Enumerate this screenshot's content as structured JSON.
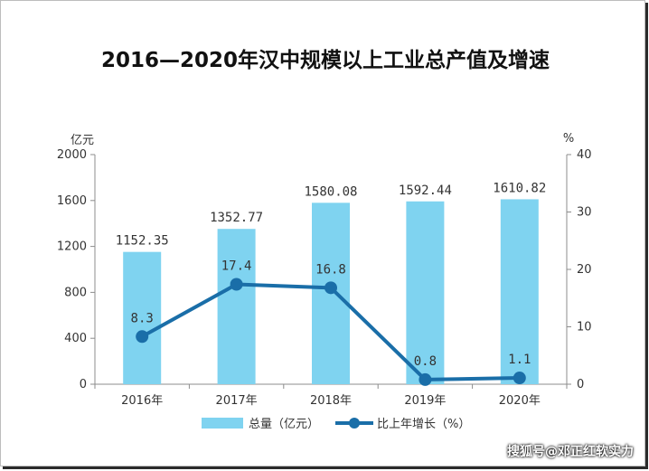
{
  "chart_data": {
    "type": "bar",
    "title": "2016—2020年汉中规模以上工业总产值及增速",
    "categories": [
      "2016年",
      "2017年",
      "2018年",
      "2019年",
      "2020年"
    ],
    "series": [
      {
        "name": "总量（亿元）",
        "type": "bar",
        "axis": "left",
        "values": [
          1152.35,
          1352.77,
          1580.08,
          1592.44,
          1610.82
        ],
        "labels": [
          "1152.35",
          "1352.77",
          "1580.08",
          "1592.44",
          "1610.82"
        ],
        "color": "#7fd3f0"
      },
      {
        "name": "比上年增长（%）",
        "type": "line",
        "axis": "right",
        "values": [
          8.3,
          17.4,
          16.8,
          0.8,
          1.1
        ],
        "labels": [
          "8.3",
          "17.4",
          "16.8",
          "0.8",
          "1.1"
        ],
        "color": "#1a6ea8"
      }
    ],
    "y_left": {
      "unit": "亿元",
      "ylim": [
        0,
        2000
      ],
      "ticks": [
        0,
        400,
        800,
        1200,
        1600,
        2000
      ]
    },
    "y_right": {
      "unit": "%",
      "ylim": [
        0,
        40
      ],
      "ticks": [
        0,
        10,
        20,
        30,
        40
      ]
    },
    "legend_position": "bottom-center",
    "grid": false
  },
  "watermark": "搜狐号@邓正红软实力"
}
